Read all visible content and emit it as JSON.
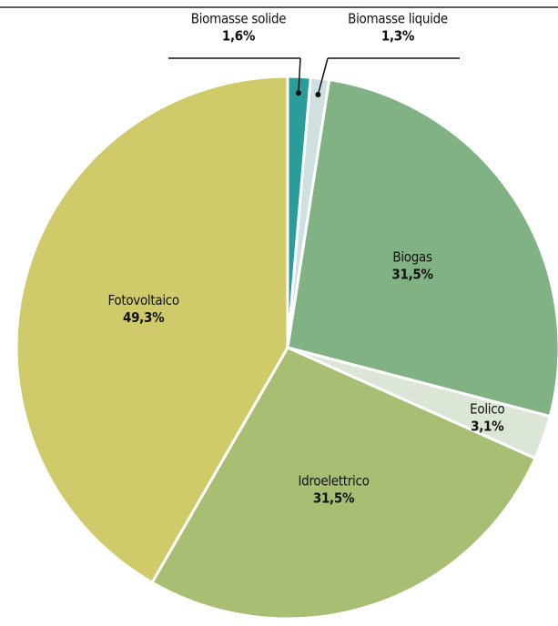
{
  "chart_data": {
    "type": "pie",
    "categories": [
      "Biomasse solide",
      "Biomasse liquide",
      "Biogas",
      "Eolico",
      "Idroelettrico",
      "Fotovoltaico"
    ],
    "values": [
      1.6,
      1.3,
      31.5,
      3.1,
      31.5,
      49.3
    ],
    "value_labels": [
      "1,6%",
      "1,3%",
      "31,5%",
      "3,1%",
      "31,5%",
      "49,3%"
    ],
    "colors": [
      "#2a9d9a",
      "#cfe0e0",
      "#80b283",
      "#dce6d6",
      "#a8bf73",
      "#cfcb6b"
    ]
  }
}
